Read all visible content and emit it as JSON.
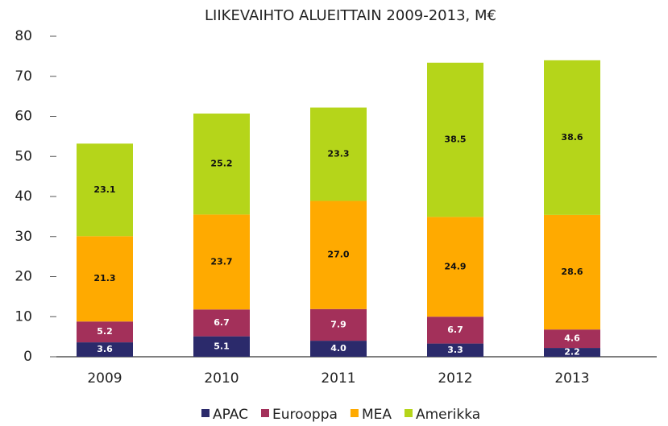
{
  "chart_data": {
    "type": "stacked_bar",
    "title": "LIIKEVAIHTO ALUEITTAIN 2009-2013, M€",
    "categories": [
      "2009",
      "2010",
      "2011",
      "2012",
      "2013"
    ],
    "series": [
      {
        "name": "APAC",
        "color": "#2b2a6b",
        "values": [
          3.6,
          5.1,
          4,
          3.3,
          2.2
        ],
        "value_labels": [
          "3.6",
          "5.1",
          "4.0",
          "3.3",
          "2.2"
        ]
      },
      {
        "name": "Eurooppa",
        "color": "#a3305a",
        "values": [
          5.2,
          6.7,
          7.9,
          6.7,
          4.6
        ],
        "value_labels": [
          "5.2",
          "6.7",
          "7.9",
          "6.7",
          "4.6"
        ]
      },
      {
        "name": "MEA",
        "color": "#ffaa00",
        "values": [
          21.3,
          23.7,
          27,
          24.9,
          28.6
        ],
        "value_labels": [
          "21.3",
          "23.7",
          "27.0",
          "24.9",
          "28.6"
        ]
      },
      {
        "name": "Amerikka",
        "color": "#b5d51a",
        "values": [
          23.1,
          25.2,
          23.3,
          38.5,
          38.6
        ],
        "value_labels": [
          "23.1",
          "25.2",
          "23.3",
          "38.5",
          "38.6"
        ]
      }
    ],
    "ylim": [
      0,
      80
    ],
    "yticks": [
      0,
      10,
      20,
      30,
      40,
      50,
      60,
      70,
      80
    ]
  }
}
